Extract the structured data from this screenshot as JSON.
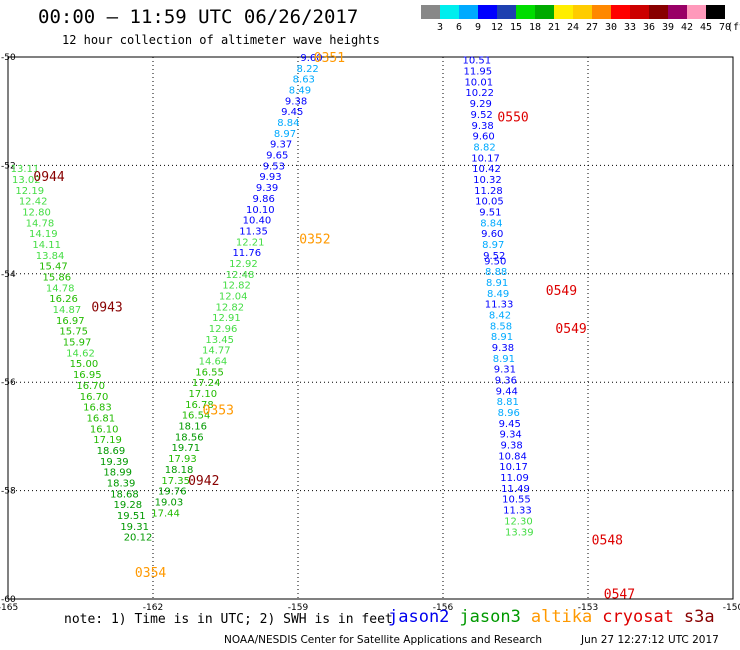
{
  "header": {
    "title": "00:00 – 11:59 UTC 06/26/2017",
    "subtitle": "12 hour collection of altimeter wave heights"
  },
  "color_scale": {
    "labels": [
      "3",
      "6",
      "9",
      "12",
      "15",
      "18",
      "21",
      "24",
      "27",
      "30",
      "33",
      "36",
      "39",
      "42",
      "45",
      "70"
    ],
    "unit": "(ft)",
    "colors": [
      "#888888",
      "#00eeee",
      "#00aaff",
      "#0000ff",
      "#1e40b0",
      "#00dd00",
      "#00aa00",
      "#ffee00",
      "#ffcc00",
      "#ff8800",
      "#ff0000",
      "#cc0000",
      "#880000",
      "#990066",
      "#ff99bb",
      "#000000"
    ]
  },
  "footer": {
    "note": "note: 1) Time is in UTC; 2) SWH is in feet",
    "credit": "NOAA/NESDIS Center for Satellite Applications and Research",
    "timestamp": "Jun 27 12:27:12 UTC 2017"
  },
  "legend": [
    {
      "name": "jason2",
      "color": "#0000ee"
    },
    {
      "name": "jason3",
      "color": "#009900"
    },
    {
      "name": "altika",
      "color": "#ff9900"
    },
    {
      "name": "cryosat",
      "color": "#dd0000"
    },
    {
      "name": "s3a",
      "color": "#880000"
    }
  ],
  "chart_data": {
    "type": "scatter",
    "title": "00:00 – 11:59 UTC 06/26/2017",
    "xlim": [
      -165,
      -150
    ],
    "ylim": [
      -60,
      -50
    ],
    "x_ticks": [
      "-165",
      "-162",
      "-159",
      "-156",
      "-153",
      "-150"
    ],
    "y_ticks": [
      "-50",
      "-52",
      "-54",
      "-56",
      "-58",
      "-60"
    ],
    "grid": true,
    "swh_colors": [
      {
        "max": 3,
        "color": "#888888"
      },
      {
        "max": 6,
        "color": "#00eeee"
      },
      {
        "max": 9,
        "color": "#00aaff"
      },
      {
        "max": 12,
        "color": "#0000ff"
      },
      {
        "max": 15,
        "color": "#44dd44"
      },
      {
        "max": 18,
        "color": "#22bb00"
      },
      {
        "max": 21,
        "color": "#009900"
      }
    ],
    "time_labels": [
      {
        "label": "0351",
        "lon": -158.35,
        "lat": -50.0,
        "color": "#ff9900"
      },
      {
        "label": "0352",
        "lon": -158.65,
        "lat": -53.35,
        "color": "#ff9900"
      },
      {
        "label": "0353",
        "lon": -160.65,
        "lat": -56.5,
        "color": "#ff9900"
      },
      {
        "label": "0354",
        "lon": -162.05,
        "lat": -59.5,
        "color": "#ff9900"
      },
      {
        "label": "0550",
        "lon": -154.55,
        "lat": -51.1,
        "color": "#dd0000"
      },
      {
        "label": "0549",
        "lon": -153.55,
        "lat": -54.3,
        "color": "#dd0000"
      },
      {
        "label": "0549",
        "lon": -153.35,
        "lat": -55.0,
        "color": "#dd0000"
      },
      {
        "label": "0548",
        "lon": -152.6,
        "lat": -58.9,
        "color": "#dd0000"
      },
      {
        "label": "0547",
        "lon": -152.35,
        "lat": -59.9,
        "color": "#dd0000"
      },
      {
        "label": "0944",
        "lon": -164.15,
        "lat": -52.2,
        "color": "#880000"
      },
      {
        "label": "0943",
        "lon": -162.95,
        "lat": -54.6,
        "color": "#880000"
      },
      {
        "label": "0942",
        "lon": -160.95,
        "lat": -57.8,
        "color": "#880000"
      }
    ],
    "series": [
      {
        "name": "altika",
        "points": [
          {
            "lon": -158.72,
            "lat": -50.0,
            "swh": 9.6
          },
          {
            "lon": -158.8,
            "lat": -50.2,
            "swh": 8.22
          },
          {
            "lon": -158.88,
            "lat": -50.4,
            "swh": 8.63
          },
          {
            "lon": -158.96,
            "lat": -50.6,
            "swh": 8.49
          },
          {
            "lon": -159.04,
            "lat": -50.8,
            "swh": 9.38
          },
          {
            "lon": -159.12,
            "lat": -51.0,
            "swh": 9.45
          },
          {
            "lon": -159.2,
            "lat": -51.2,
            "swh": 8.84
          },
          {
            "lon": -159.27,
            "lat": -51.4,
            "swh": 8.97
          },
          {
            "lon": -159.35,
            "lat": -51.6,
            "swh": 9.37
          },
          {
            "lon": -159.43,
            "lat": -51.8,
            "swh": 9.65
          },
          {
            "lon": -159.5,
            "lat": -52.0,
            "swh": 9.53
          },
          {
            "lon": -159.57,
            "lat": -52.2,
            "swh": 9.93
          },
          {
            "lon": -159.64,
            "lat": -52.4,
            "swh": 9.39
          },
          {
            "lon": -159.71,
            "lat": -52.6,
            "swh": 9.86
          },
          {
            "lon": -159.78,
            "lat": -52.8,
            "swh": 10.1
          },
          {
            "lon": -159.85,
            "lat": -53.0,
            "swh": 10.4
          },
          {
            "lon": -159.92,
            "lat": -53.2,
            "swh": 11.35
          },
          {
            "lon": -159.99,
            "lat": -53.4,
            "swh": 12.21
          },
          {
            "lon": -160.06,
            "lat": -53.6,
            "swh": 11.76
          },
          {
            "lon": -160.13,
            "lat": -53.8,
            "swh": 12.92
          },
          {
            "lon": -160.2,
            "lat": -54.0,
            "swh": 12.48
          },
          {
            "lon": -160.27,
            "lat": -54.2,
            "swh": 12.82
          },
          {
            "lon": -160.34,
            "lat": -54.4,
            "swh": 12.04
          },
          {
            "lon": -160.41,
            "lat": -54.6,
            "swh": 12.82
          },
          {
            "lon": -160.48,
            "lat": -54.8,
            "swh": 12.91
          },
          {
            "lon": -160.55,
            "lat": -55.0,
            "swh": 12.96
          },
          {
            "lon": -160.62,
            "lat": -55.2,
            "swh": 13.45
          },
          {
            "lon": -160.69,
            "lat": -55.4,
            "swh": 14.77
          },
          {
            "lon": -160.76,
            "lat": -55.6,
            "swh": 14.64
          },
          {
            "lon": -160.83,
            "lat": -55.8,
            "swh": 16.55
          },
          {
            "lon": -160.9,
            "lat": -56.0,
            "swh": 17.24
          },
          {
            "lon": -160.97,
            "lat": -56.2,
            "swh": 17.1
          },
          {
            "lon": -161.04,
            "lat": -56.4,
            "swh": 16.78
          },
          {
            "lon": -161.11,
            "lat": -56.6,
            "swh": 16.54
          },
          {
            "lon": -161.18,
            "lat": -56.8,
            "swh": 18.16
          },
          {
            "lon": -161.25,
            "lat": -57.0,
            "swh": 18.56
          },
          {
            "lon": -161.32,
            "lat": -57.2,
            "swh": 19.71
          },
          {
            "lon": -161.39,
            "lat": -57.4,
            "swh": 17.93
          },
          {
            "lon": -161.46,
            "lat": -57.6,
            "swh": 18.18
          },
          {
            "lon": -161.53,
            "lat": -57.8,
            "swh": 17.35
          },
          {
            "lon": -161.6,
            "lat": -58.0,
            "swh": 19.76
          },
          {
            "lon": -161.67,
            "lat": -58.2,
            "swh": 19.03
          },
          {
            "lon": -161.74,
            "lat": -58.4,
            "swh": 17.44
          }
        ]
      },
      {
        "name": "cryosat",
        "points": [
          {
            "lon": -155.3,
            "lat": -50.05,
            "swh": 10.51
          },
          {
            "lon": -155.28,
            "lat": -50.25,
            "swh": 11.95
          },
          {
            "lon": -155.26,
            "lat": -50.45,
            "swh": 10.01
          },
          {
            "lon": -155.24,
            "lat": -50.65,
            "swh": 10.22
          },
          {
            "lon": -155.22,
            "lat": -50.85,
            "swh": 9.29
          },
          {
            "lon": -155.2,
            "lat": -51.05,
            "swh": 9.52
          },
          {
            "lon": -155.18,
            "lat": -51.25,
            "swh": 9.38
          },
          {
            "lon": -155.16,
            "lat": -51.45,
            "swh": 9.6
          },
          {
            "lon": -155.14,
            "lat": -51.65,
            "swh": 8.82
          },
          {
            "lon": -155.12,
            "lat": -51.85,
            "swh": 10.17
          },
          {
            "lon": -155.1,
            "lat": -52.05,
            "swh": 10.42
          },
          {
            "lon": -155.08,
            "lat": -52.25,
            "swh": 10.32
          },
          {
            "lon": -155.06,
            "lat": -52.45,
            "swh": 11.28
          },
          {
            "lon": -155.04,
            "lat": -52.65,
            "swh": 10.05
          },
          {
            "lon": -155.02,
            "lat": -52.85,
            "swh": 9.51
          },
          {
            "lon": -155.0,
            "lat": -53.05,
            "swh": 8.84
          },
          {
            "lon": -154.98,
            "lat": -53.25,
            "swh": 9.6
          },
          {
            "lon": -154.96,
            "lat": -53.45,
            "swh": 8.97
          },
          {
            "lon": -154.94,
            "lat": -53.65,
            "swh": 9.52
          },
          {
            "lon": -154.92,
            "lat": -53.75,
            "swh": 9.5
          },
          {
            "lon": -154.9,
            "lat": -53.95,
            "swh": 8.88
          },
          {
            "lon": -154.88,
            "lat": -54.15,
            "swh": 8.91
          },
          {
            "lon": -154.86,
            "lat": -54.35,
            "swh": 8.49
          },
          {
            "lon": -154.84,
            "lat": -54.55,
            "swh": 11.33
          },
          {
            "lon": -154.82,
            "lat": -54.75,
            "swh": 8.42
          },
          {
            "lon": -154.8,
            "lat": -54.95,
            "swh": 8.58
          },
          {
            "lon": -154.78,
            "lat": -55.15,
            "swh": 8.91
          },
          {
            "lon": -154.76,
            "lat": -55.35,
            "swh": 9.38
          },
          {
            "lon": -154.74,
            "lat": -55.55,
            "swh": 8.91
          },
          {
            "lon": -154.72,
            "lat": -55.75,
            "swh": 9.31
          },
          {
            "lon": -154.7,
            "lat": -55.95,
            "swh": 9.36
          },
          {
            "lon": -154.68,
            "lat": -56.15,
            "swh": 9.44
          },
          {
            "lon": -154.66,
            "lat": -56.35,
            "swh": 8.81
          },
          {
            "lon": -154.64,
            "lat": -56.55,
            "swh": 8.96
          },
          {
            "lon": -154.62,
            "lat": -56.75,
            "swh": 9.45
          },
          {
            "lon": -154.6,
            "lat": -56.95,
            "swh": 9.34
          },
          {
            "lon": -154.58,
            "lat": -57.15,
            "swh": 9.38
          },
          {
            "lon": -154.56,
            "lat": -57.35,
            "swh": 10.84
          },
          {
            "lon": -154.54,
            "lat": -57.55,
            "swh": 10.17
          },
          {
            "lon": -154.52,
            "lat": -57.75,
            "swh": 11.09
          },
          {
            "lon": -154.5,
            "lat": -57.95,
            "swh": 11.49
          },
          {
            "lon": -154.48,
            "lat": -58.15,
            "swh": 10.55
          },
          {
            "lon": -154.46,
            "lat": -58.35,
            "swh": 11.33
          },
          {
            "lon": -154.44,
            "lat": -58.55,
            "swh": 12.3
          },
          {
            "lon": -154.42,
            "lat": -58.75,
            "swh": 13.39
          }
        ]
      },
      {
        "name": "s3a",
        "points": [
          {
            "lon": -164.65,
            "lat": -52.05,
            "swh": 13.11
          },
          {
            "lon": -164.62,
            "lat": -52.25,
            "swh": 13.02
          },
          {
            "lon": -164.55,
            "lat": -52.45,
            "swh": 12.19
          },
          {
            "lon": -164.48,
            "lat": -52.65,
            "swh": 12.42
          },
          {
            "lon": -164.41,
            "lat": -52.85,
            "swh": 12.8
          },
          {
            "lon": -164.34,
            "lat": -53.05,
            "swh": 14.78
          },
          {
            "lon": -164.27,
            "lat": -53.25,
            "swh": 14.19
          },
          {
            "lon": -164.2,
            "lat": -53.45,
            "swh": 14.11
          },
          {
            "lon": -164.13,
            "lat": -53.65,
            "swh": 13.84
          },
          {
            "lon": -164.06,
            "lat": -53.85,
            "swh": 15.47
          },
          {
            "lon": -163.99,
            "lat": -54.05,
            "swh": 15.86
          },
          {
            "lon": -163.92,
            "lat": -54.25,
            "swh": 14.78
          },
          {
            "lon": -163.85,
            "lat": -54.45,
            "swh": 16.26
          },
          {
            "lon": -163.78,
            "lat": -54.65,
            "swh": 14.87
          },
          {
            "lon": -163.71,
            "lat": -54.85,
            "swh": 16.97
          },
          {
            "lon": -163.64,
            "lat": -55.05,
            "swh": 15.75
          },
          {
            "lon": -163.57,
            "lat": -55.25,
            "swh": 15.97
          },
          {
            "lon": -163.5,
            "lat": -55.45,
            "swh": 14.62
          },
          {
            "lon": -163.43,
            "lat": -55.65,
            "swh": 15.0
          },
          {
            "lon": -163.36,
            "lat": -55.85,
            "swh": 16.95
          },
          {
            "lon": -163.29,
            "lat": -56.05,
            "swh": 16.7
          },
          {
            "lon": -163.22,
            "lat": -56.25,
            "swh": 16.7
          },
          {
            "lon": -163.15,
            "lat": -56.45,
            "swh": 16.83
          },
          {
            "lon": -163.08,
            "lat": -56.65,
            "swh": 16.81
          },
          {
            "lon": -163.01,
            "lat": -56.85,
            "swh": 16.1
          },
          {
            "lon": -162.94,
            "lat": -57.05,
            "swh": 17.19
          },
          {
            "lon": -162.87,
            "lat": -57.25,
            "swh": 18.69
          },
          {
            "lon": -162.8,
            "lat": -57.45,
            "swh": 19.39
          },
          {
            "lon": -162.73,
            "lat": -57.65,
            "swh": 18.99
          },
          {
            "lon": -162.66,
            "lat": -57.85,
            "swh": 18.39
          },
          {
            "lon": -162.59,
            "lat": -58.05,
            "swh": 18.68
          },
          {
            "lon": -162.52,
            "lat": -58.25,
            "swh": 19.28
          },
          {
            "lon": -162.45,
            "lat": -58.45,
            "swh": 19.51
          },
          {
            "lon": -162.38,
            "lat": -58.65,
            "swh": 19.31
          },
          {
            "lon": -162.31,
            "lat": -58.85,
            "swh": 20.12
          }
        ]
      }
    ]
  }
}
